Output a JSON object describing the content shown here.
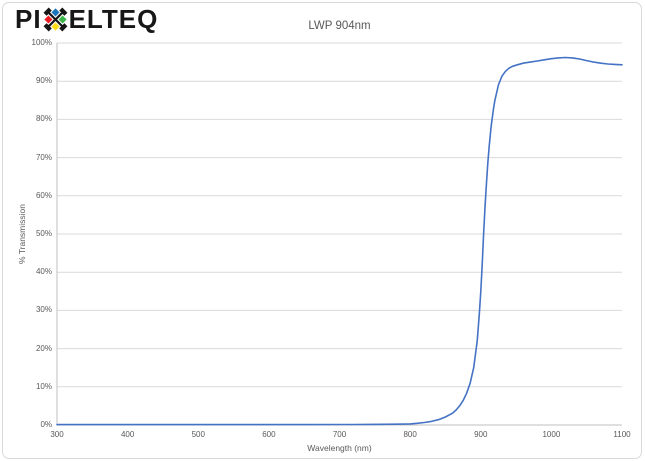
{
  "logo": {
    "text_before_x": "PI",
    "text_after_x": "ELTEQ",
    "x_glyph_colors": {
      "cross": "#161616",
      "top_diamond": "#1b75bb",
      "left_diamond": "#ed1c24",
      "right_diamond": "#39b54a",
      "bottom_diamond": "#ffde17"
    }
  },
  "chart_data": {
    "type": "line",
    "title": "LWP 904nm",
    "xlabel": "Wavelength (nm)",
    "ylabel": "% Transmission",
    "xlim": [
      300,
      1100
    ],
    "ylim": [
      0,
      100
    ],
    "x_ticks": [
      300,
      400,
      500,
      600,
      700,
      800,
      900,
      1000,
      1100
    ],
    "y_ticks": [
      0,
      10,
      20,
      30,
      40,
      50,
      60,
      70,
      80,
      90,
      100
    ],
    "y_tick_suffix": "%",
    "grid": "horizontal-only",
    "legend": "none",
    "line_color": "#4472c4",
    "gridline_color": "#d9d9d9",
    "axis_color": "#bfbfbf",
    "text_color": "#595959",
    "series": [
      {
        "name": "LWP 904nm",
        "points": [
          [
            300,
            0.1
          ],
          [
            350,
            0.1
          ],
          [
            400,
            0.1
          ],
          [
            450,
            0.1
          ],
          [
            500,
            0.1
          ],
          [
            550,
            0.1
          ],
          [
            600,
            0.1
          ],
          [
            650,
            0.1
          ],
          [
            700,
            0.12
          ],
          [
            720,
            0.12
          ],
          [
            740,
            0.15
          ],
          [
            760,
            0.18
          ],
          [
            780,
            0.22
          ],
          [
            800,
            0.3
          ],
          [
            810,
            0.45
          ],
          [
            820,
            0.65
          ],
          [
            830,
            0.95
          ],
          [
            840,
            1.4
          ],
          [
            850,
            2.1
          ],
          [
            860,
            3.1
          ],
          [
            865,
            3.9
          ],
          [
            870,
            5.0
          ],
          [
            875,
            6.4
          ],
          [
            880,
            8.3
          ],
          [
            885,
            11.0
          ],
          [
            890,
            15.0
          ],
          [
            895,
            22.0
          ],
          [
            898,
            29.0
          ],
          [
            900,
            35.0
          ],
          [
            902,
            42.0
          ],
          [
            904,
            50.0
          ],
          [
            906,
            57.0
          ],
          [
            908,
            63.0
          ],
          [
            910,
            68.5
          ],
          [
            912,
            73.0
          ],
          [
            915,
            78.5
          ],
          [
            918,
            82.8
          ],
          [
            920,
            85.0
          ],
          [
            925,
            89.0
          ],
          [
            930,
            91.3
          ],
          [
            935,
            92.6
          ],
          [
            940,
            93.4
          ],
          [
            945,
            93.9
          ],
          [
            950,
            94.2
          ],
          [
            960,
            94.7
          ],
          [
            970,
            95.0
          ],
          [
            980,
            95.3
          ],
          [
            990,
            95.6
          ],
          [
            1000,
            95.9
          ],
          [
            1010,
            96.1
          ],
          [
            1020,
            96.2
          ],
          [
            1030,
            96.1
          ],
          [
            1040,
            95.8
          ],
          [
            1050,
            95.4
          ],
          [
            1060,
            95.0
          ],
          [
            1070,
            94.7
          ],
          [
            1080,
            94.5
          ],
          [
            1090,
            94.4
          ],
          [
            1100,
            94.3
          ]
        ]
      }
    ]
  }
}
